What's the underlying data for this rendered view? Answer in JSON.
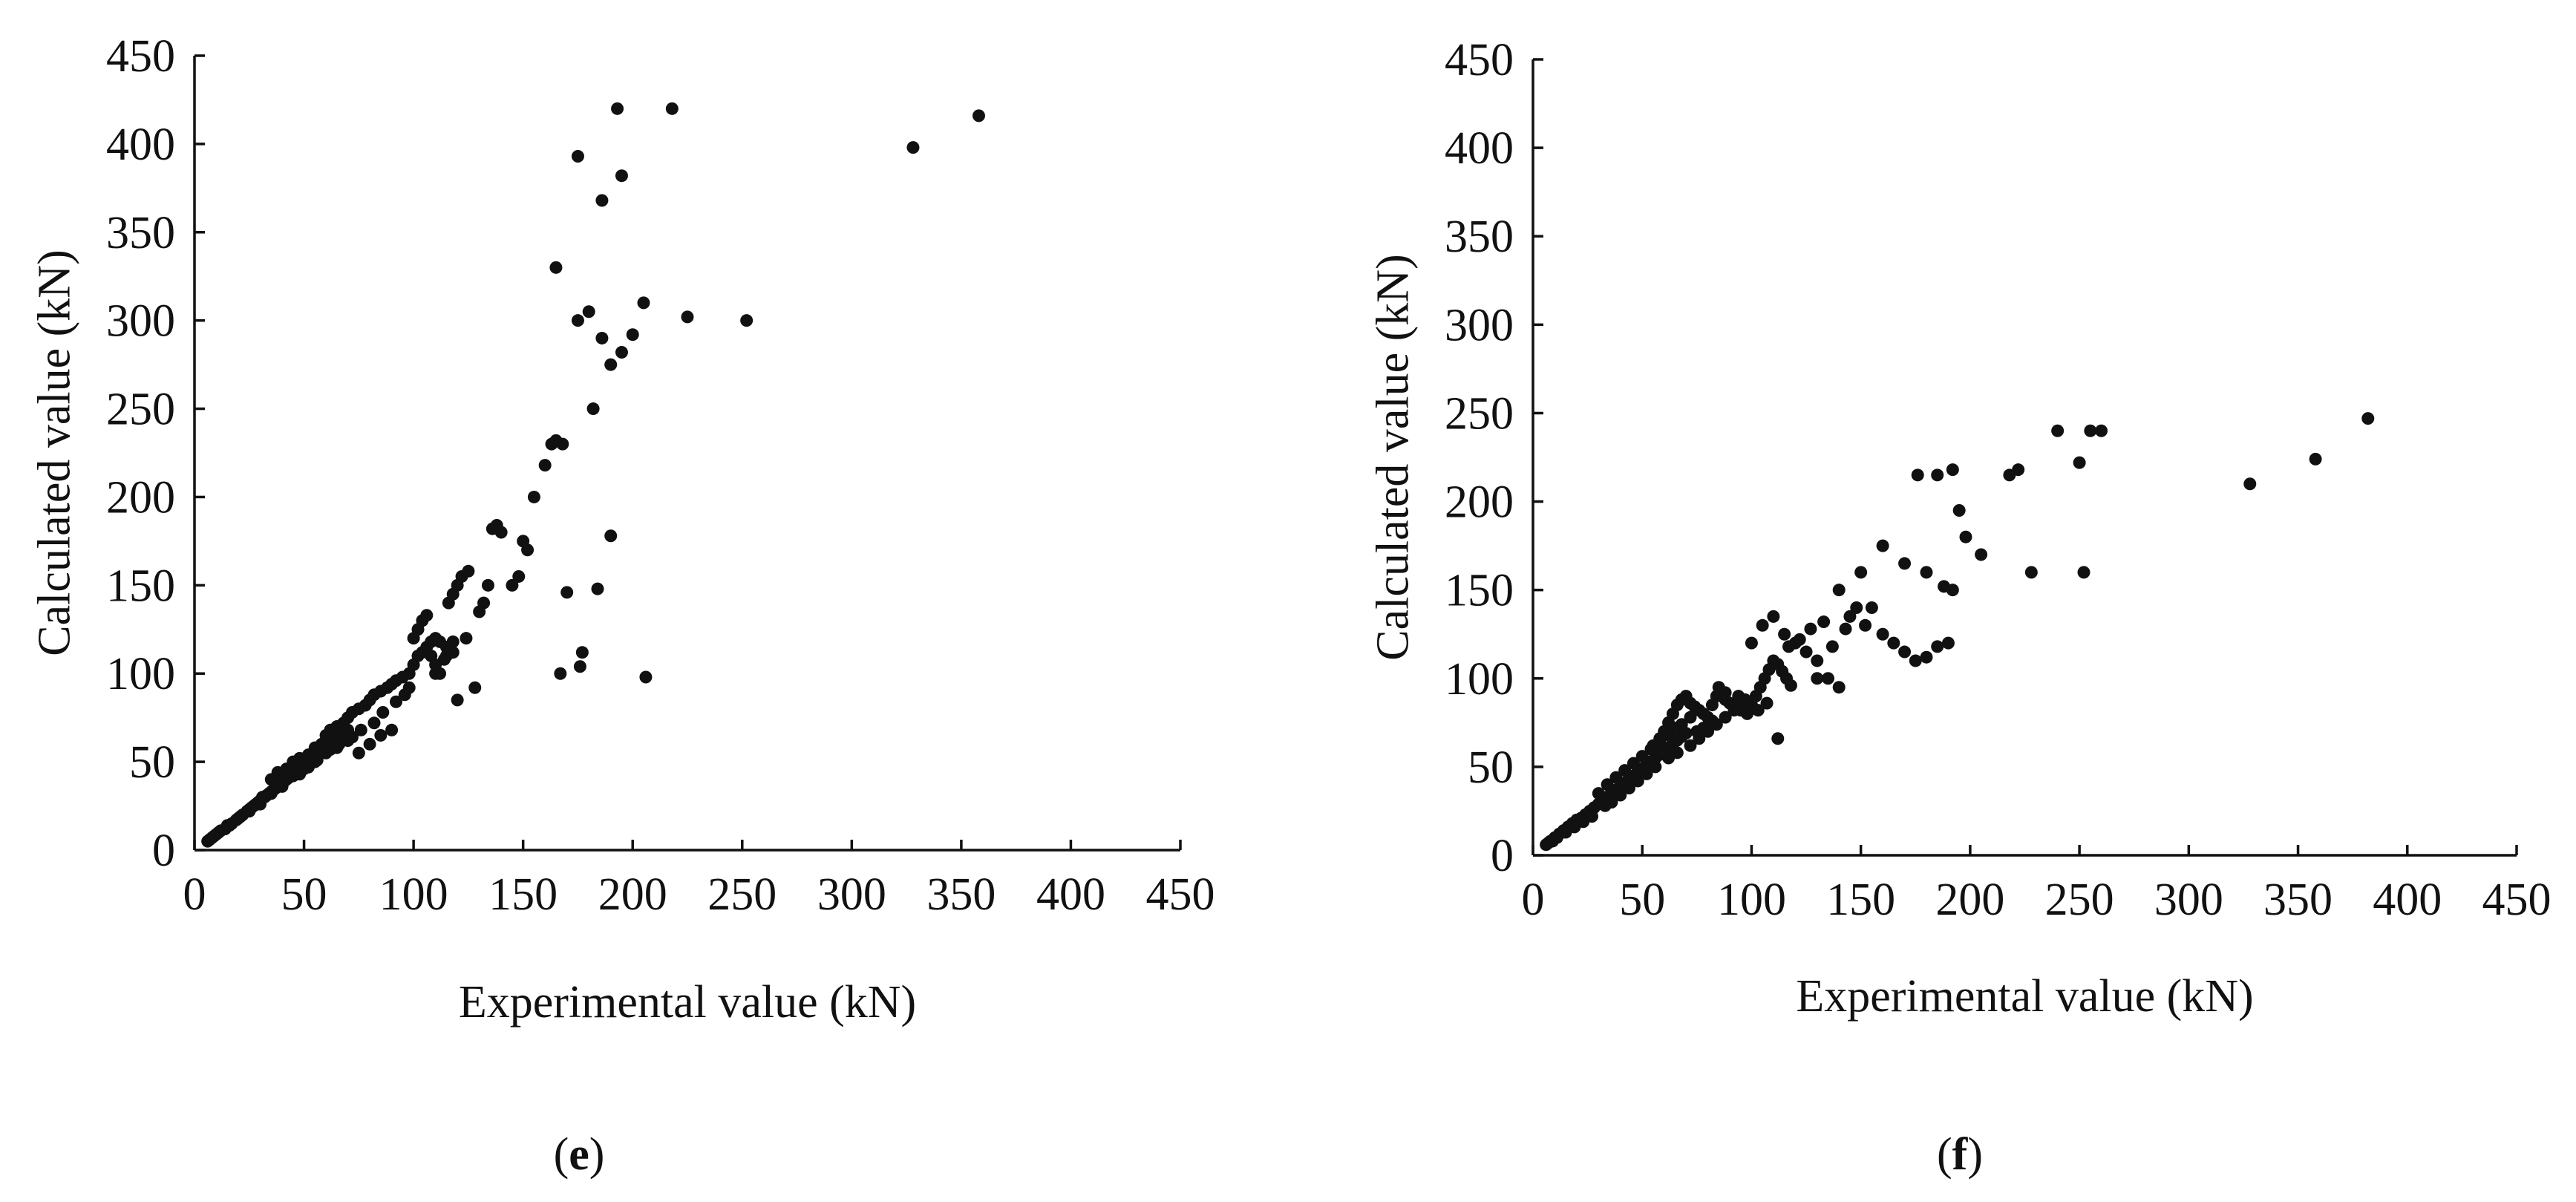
{
  "chart_data": [
    {
      "type": "scatter",
      "panel_label": "e",
      "xlabel": "Experimental value (kN)",
      "ylabel": "Calculated value (kN)",
      "xlim": [
        0,
        450
      ],
      "ylim": [
        0,
        450
      ],
      "xticks": [
        0,
        50,
        100,
        150,
        200,
        250,
        300,
        350,
        400,
        450
      ],
      "yticks": [
        0,
        50,
        100,
        150,
        200,
        250,
        300,
        350,
        400,
        450
      ],
      "grid": false,
      "marker_color": "#111111",
      "points": [
        [
          6,
          5
        ],
        [
          8,
          7
        ],
        [
          10,
          9
        ],
        [
          12,
          11
        ],
        [
          14,
          12
        ],
        [
          15,
          14
        ],
        [
          17,
          15
        ],
        [
          19,
          17
        ],
        [
          21,
          19
        ],
        [
          22,
          20
        ],
        [
          24,
          22
        ],
        [
          25,
          23
        ],
        [
          26,
          24
        ],
        [
          27,
          25
        ],
        [
          28,
          26
        ],
        [
          29,
          27
        ],
        [
          30,
          28
        ],
        [
          31,
          30
        ],
        [
          32,
          30
        ],
        [
          33,
          31
        ],
        [
          34,
          32
        ],
        [
          35,
          33
        ],
        [
          36,
          34
        ],
        [
          37,
          35
        ],
        [
          38,
          36
        ],
        [
          39,
          37
        ],
        [
          40,
          38
        ],
        [
          41,
          39
        ],
        [
          42,
          40
        ],
        [
          43,
          41
        ],
        [
          44,
          42
        ],
        [
          45,
          43
        ],
        [
          46,
          44
        ],
        [
          47,
          45
        ],
        [
          48,
          46
        ],
        [
          49,
          47
        ],
        [
          50,
          48
        ],
        [
          51,
          49
        ],
        [
          52,
          50
        ],
        [
          53,
          51
        ],
        [
          54,
          52
        ],
        [
          55,
          53
        ],
        [
          56,
          54
        ],
        [
          57,
          55
        ],
        [
          58,
          56
        ],
        [
          59,
          57
        ],
        [
          60,
          58
        ],
        [
          61,
          59
        ],
        [
          62,
          60
        ],
        [
          63,
          61
        ],
        [
          64,
          62
        ],
        [
          65,
          63
        ],
        [
          66,
          64
        ],
        [
          67,
          65
        ],
        [
          68,
          66
        ],
        [
          69,
          67
        ],
        [
          70,
          68
        ],
        [
          35,
          40
        ],
        [
          38,
          44
        ],
        [
          42,
          46
        ],
        [
          45,
          50
        ],
        [
          48,
          52
        ],
        [
          52,
          54
        ],
        [
          55,
          58
        ],
        [
          58,
          60
        ],
        [
          60,
          65
        ],
        [
          62,
          68
        ],
        [
          65,
          70
        ],
        [
          68,
          72
        ],
        [
          70,
          75
        ],
        [
          72,
          78
        ],
        [
          75,
          80
        ],
        [
          78,
          82
        ],
        [
          80,
          85
        ],
        [
          82,
          88
        ],
        [
          85,
          90
        ],
        [
          88,
          92
        ],
        [
          90,
          94
        ],
        [
          92,
          96
        ],
        [
          95,
          98
        ],
        [
          98,
          100
        ],
        [
          100,
          105
        ],
        [
          102,
          110
        ],
        [
          104,
          112
        ],
        [
          106,
          115
        ],
        [
          108,
          118
        ],
        [
          110,
          120
        ],
        [
          112,
          118
        ],
        [
          115,
          115
        ],
        [
          118,
          112
        ],
        [
          100,
          120
        ],
        [
          102,
          125
        ],
        [
          104,
          130
        ],
        [
          106,
          133
        ],
        [
          108,
          110
        ],
        [
          110,
          105
        ],
        [
          112,
          100
        ],
        [
          115,
          110
        ],
        [
          120,
          85
        ],
        [
          116,
          140
        ],
        [
          118,
          145
        ],
        [
          120,
          150
        ],
        [
          122,
          155
        ],
        [
          125,
          158
        ],
        [
          130,
          135
        ],
        [
          132,
          140
        ],
        [
          134,
          150
        ],
        [
          136,
          182
        ],
        [
          138,
          184
        ],
        [
          140,
          180
        ],
        [
          145,
          150
        ],
        [
          148,
          155
        ],
        [
          150,
          175
        ],
        [
          152,
          170
        ],
        [
          155,
          200
        ],
        [
          160,
          218
        ],
        [
          163,
          230
        ],
        [
          165,
          232
        ],
        [
          168,
          230
        ],
        [
          170,
          146
        ],
        [
          175,
          300
        ],
        [
          180,
          305
        ],
        [
          182,
          250
        ],
        [
          186,
          290
        ],
        [
          190,
          275
        ],
        [
          195,
          282
        ],
        [
          200,
          292
        ],
        [
          205,
          310
        ],
        [
          225,
          302
        ],
        [
          252,
          300
        ],
        [
          167,
          100
        ],
        [
          176,
          104
        ],
        [
          177,
          112
        ],
        [
          184,
          148
        ],
        [
          190,
          178
        ],
        [
          206,
          98
        ],
        [
          165,
          330
        ],
        [
          175,
          393
        ],
        [
          186,
          368
        ],
        [
          193,
          420
        ],
        [
          195,
          382
        ],
        [
          218,
          420
        ],
        [
          328,
          398
        ],
        [
          358,
          416
        ],
        [
          80,
          60
        ],
        [
          85,
          65
        ],
        [
          90,
          68
        ],
        [
          75,
          55
        ],
        [
          65,
          58
        ],
        [
          70,
          62
        ],
        [
          60,
          55
        ],
        [
          55,
          50
        ],
        [
          50,
          46
        ],
        [
          45,
          42
        ],
        [
          40,
          36
        ],
        [
          35,
          32
        ],
        [
          30,
          26
        ],
        [
          25,
          22
        ],
        [
          20,
          18
        ],
        [
          16,
          14
        ],
        [
          11,
          10
        ],
        [
          9,
          8
        ],
        [
          7,
          6
        ],
        [
          48,
          43
        ],
        [
          52,
          47
        ],
        [
          56,
          51
        ],
        [
          62,
          57
        ],
        [
          66,
          60
        ],
        [
          72,
          64
        ],
        [
          76,
          68
        ],
        [
          82,
          72
        ],
        [
          86,
          78
        ],
        [
          92,
          84
        ],
        [
          96,
          88
        ],
        [
          98,
          92
        ],
        [
          110,
          100
        ],
        [
          114,
          108
        ],
        [
          118,
          118
        ],
        [
          124,
          120
        ],
        [
          128,
          92
        ]
      ]
    },
    {
      "type": "scatter",
      "panel_label": "f",
      "xlabel": "Experimental value (kN)",
      "ylabel": "Calculated value (kN)",
      "xlim": [
        0,
        450
      ],
      "ylim": [
        0,
        450
      ],
      "xticks": [
        0,
        50,
        100,
        150,
        200,
        250,
        300,
        350,
        400,
        450
      ],
      "yticks": [
        0,
        50,
        100,
        150,
        200,
        250,
        300,
        350,
        400,
        450
      ],
      "grid": false,
      "marker_color": "#111111",
      "points": [
        [
          6,
          6
        ],
        [
          8,
          8
        ],
        [
          10,
          10
        ],
        [
          12,
          12
        ],
        [
          14,
          14
        ],
        [
          16,
          16
        ],
        [
          18,
          18
        ],
        [
          20,
          20
        ],
        [
          22,
          21
        ],
        [
          24,
          23
        ],
        [
          26,
          25
        ],
        [
          28,
          27
        ],
        [
          30,
          29
        ],
        [
          32,
          31
        ],
        [
          34,
          33
        ],
        [
          36,
          35
        ],
        [
          38,
          37
        ],
        [
          40,
          39
        ],
        [
          42,
          41
        ],
        [
          44,
          43
        ],
        [
          46,
          45
        ],
        [
          48,
          47
        ],
        [
          50,
          49
        ],
        [
          52,
          51
        ],
        [
          54,
          53
        ],
        [
          56,
          55
        ],
        [
          58,
          57
        ],
        [
          60,
          59
        ],
        [
          62,
          61
        ],
        [
          64,
          63
        ],
        [
          66,
          65
        ],
        [
          68,
          67
        ],
        [
          70,
          69
        ],
        [
          30,
          35
        ],
        [
          34,
          40
        ],
        [
          38,
          44
        ],
        [
          42,
          48
        ],
        [
          46,
          52
        ],
        [
          50,
          56
        ],
        [
          54,
          60
        ],
        [
          58,
          64
        ],
        [
          60,
          70
        ],
        [
          62,
          75
        ],
        [
          64,
          80
        ],
        [
          66,
          85
        ],
        [
          68,
          88
        ],
        [
          70,
          90
        ],
        [
          72,
          86
        ],
        [
          74,
          84
        ],
        [
          76,
          82
        ],
        [
          78,
          80
        ],
        [
          80,
          78
        ],
        [
          82,
          76
        ],
        [
          84,
          90
        ],
        [
          86,
          92
        ],
        [
          88,
          88
        ],
        [
          90,
          86
        ],
        [
          92,
          84
        ],
        [
          95,
          82
        ],
        [
          98,
          80
        ],
        [
          100,
          85
        ],
        [
          102,
          90
        ],
        [
          104,
          95
        ],
        [
          106,
          100
        ],
        [
          108,
          105
        ],
        [
          110,
          110
        ],
        [
          112,
          108
        ],
        [
          114,
          104
        ],
        [
          116,
          100
        ],
        [
          118,
          96
        ],
        [
          100,
          120
        ],
        [
          105,
          130
        ],
        [
          110,
          135
        ],
        [
          115,
          125
        ],
        [
          120,
          120
        ],
        [
          125,
          115
        ],
        [
          130,
          110
        ],
        [
          135,
          100
        ],
        [
          140,
          95
        ],
        [
          145,
          135
        ],
        [
          150,
          160
        ],
        [
          155,
          140
        ],
        [
          160,
          125
        ],
        [
          165,
          120
        ],
        [
          170,
          115
        ],
        [
          175,
          110
        ],
        [
          180,
          112
        ],
        [
          185,
          118
        ],
        [
          190,
          120
        ],
        [
          195,
          195
        ],
        [
          176,
          215
        ],
        [
          185,
          215
        ],
        [
          192,
          218
        ],
        [
          198,
          180
        ],
        [
          205,
          170
        ],
        [
          218,
          215
        ],
        [
          222,
          218
        ],
        [
          240,
          240
        ],
        [
          250,
          222
        ],
        [
          255,
          240
        ],
        [
          260,
          240
        ],
        [
          228,
          160
        ],
        [
          252,
          160
        ],
        [
          328,
          210
        ],
        [
          358,
          224
        ],
        [
          382,
          247
        ],
        [
          112,
          66
        ],
        [
          130,
          100
        ],
        [
          140,
          150
        ],
        [
          160,
          175
        ],
        [
          170,
          165
        ],
        [
          180,
          160
        ],
        [
          188,
          152
        ],
        [
          192,
          150
        ],
        [
          48,
          42
        ],
        [
          52,
          46
        ],
        [
          56,
          50
        ],
        [
          62,
          55
        ],
        [
          66,
          58
        ],
        [
          72,
          62
        ],
        [
          76,
          66
        ],
        [
          80,
          70
        ],
        [
          84,
          74
        ],
        [
          88,
          78
        ],
        [
          92,
          82
        ],
        [
          96,
          86
        ],
        [
          44,
          38
        ],
        [
          40,
          34
        ],
        [
          36,
          30
        ],
        [
          33,
          28
        ],
        [
          27,
          22
        ],
        [
          23,
          19
        ],
        [
          19,
          16
        ],
        [
          15,
          13
        ],
        [
          11,
          10
        ],
        [
          9,
          8
        ],
        [
          7,
          7
        ],
        [
          55,
          62
        ],
        [
          58,
          66
        ],
        [
          62,
          68
        ],
        [
          65,
          72
        ],
        [
          68,
          74
        ],
        [
          72,
          78
        ],
        [
          75,
          70
        ],
        [
          78,
          72
        ],
        [
          82,
          85
        ],
        [
          85,
          95
        ],
        [
          88,
          92
        ],
        [
          94,
          90
        ],
        [
          97,
          88
        ],
        [
          103,
          82
        ],
        [
          107,
          86
        ],
        [
          117,
          118
        ],
        [
          122,
          122
        ],
        [
          127,
          128
        ],
        [
          133,
          132
        ],
        [
          137,
          118
        ],
        [
          143,
          128
        ],
        [
          148,
          140
        ],
        [
          152,
          130
        ]
      ]
    }
  ]
}
